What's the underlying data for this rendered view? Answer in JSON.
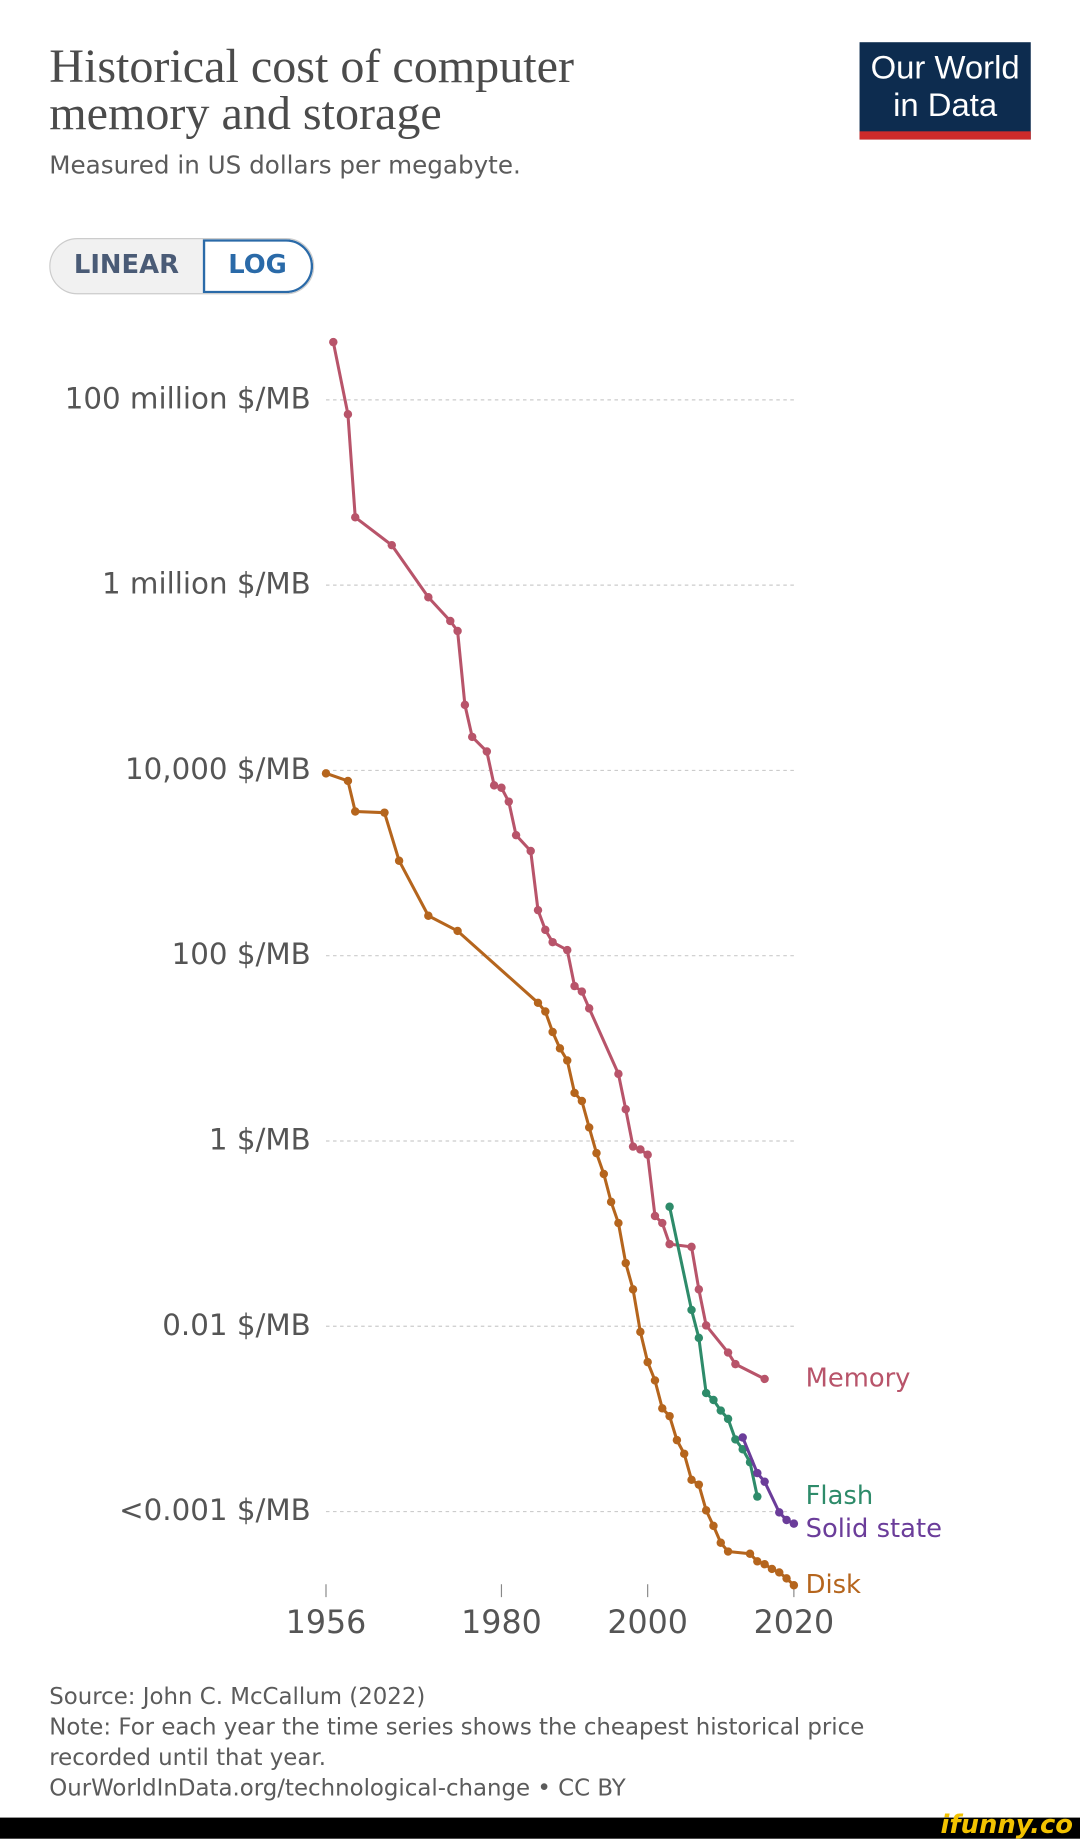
{
  "chart_data": {
    "type": "line",
    "title": "Historical cost of computer memory and storage",
    "subtitle": "Measured in US dollars per megabyte.",
    "logo": "Our World in Data",
    "scale_options": [
      "LINEAR",
      "LOG"
    ],
    "log_scale": true,
    "grid": true,
    "xlim": [
      1956,
      2020
    ],
    "xticks": [
      1956,
      1980,
      2000,
      2020
    ],
    "ylim": [
      1e-05,
      1000000000
    ],
    "yticks": [
      {
        "value": 100000000,
        "label": "100 million $/MB"
      },
      {
        "value": 1000000,
        "label": "1 million $/MB"
      },
      {
        "value": 10000,
        "label": "10,000 $/MB"
      },
      {
        "value": 100,
        "label": "100 $/MB"
      },
      {
        "value": 1,
        "label": "1 $/MB"
      },
      {
        "value": 0.01,
        "label": "0.01 $/MB"
      },
      {
        "value": 0.0001,
        "label": "<0.001 $/MB"
      }
    ],
    "series": [
      {
        "name": "Memory",
        "color": "#b8546a",
        "x": [
          1957,
          1959,
          1960,
          1965,
          1970,
          1973,
          1974,
          1975,
          1976,
          1978,
          1979,
          1980,
          1981,
          1982,
          1984,
          1985,
          1986,
          1987,
          1989,
          1990,
          1991,
          1992,
          1996,
          1997,
          1998,
          1999,
          2000,
          2001,
          2002,
          2003,
          2006,
          2007,
          2008,
          2011,
          2012,
          2016
        ],
        "values": [
          420000000,
          70000000,
          5400000,
          2700000,
          740000,
          410000,
          320000,
          51000,
          23000,
          16000,
          6900,
          6500,
          4600,
          2000,
          1350,
          310,
          190,
          140,
          115,
          47,
          41,
          27,
          5.3,
          2.2,
          0.87,
          0.81,
          0.71,
          0.155,
          0.13,
          0.077,
          0.072,
          0.025,
          0.0102,
          0.0052,
          0.0039,
          0.0027
        ]
      },
      {
        "name": "Flash",
        "color": "#2e8b6a",
        "x": [
          2003,
          2006,
          2007,
          2008,
          2009,
          2010,
          2011,
          2012,
          2013,
          2014,
          2015
        ],
        "values": [
          0.195,
          0.015,
          0.0075,
          0.0019,
          0.0016,
          0.00123,
          0.001,
          0.0006,
          0.00047,
          0.00034,
          0.000145
        ]
      },
      {
        "name": "Solid state",
        "color": "#6b3d9a",
        "x": [
          2013,
          2015,
          2016,
          2018,
          2019,
          2020
        ],
        "values": [
          0.00063,
          0.00026,
          0.00021,
          9.8e-05,
          8.1e-05,
          7.4e-05
        ]
      },
      {
        "name": "Disk",
        "color": "#b5651d",
        "x": [
          1956,
          1959,
          1960,
          1964,
          1966,
          1970,
          1974,
          1985,
          1986,
          1987,
          1988,
          1989,
          1990,
          1991,
          1992,
          1993,
          1994,
          1995,
          1996,
          1997,
          1998,
          1999,
          2000,
          2001,
          2002,
          2003,
          2004,
          2005,
          2006,
          2007,
          2008,
          2009,
          2010,
          2011,
          2014,
          2015,
          2016,
          2017,
          2018,
          2019,
          2020
        ],
        "values": [
          9300,
          7700,
          3600,
          3500,
          1060,
          270,
          185,
          31,
          25,
          15,
          10,
          7.4,
          3.3,
          2.7,
          1.4,
          0.74,
          0.44,
          0.22,
          0.13,
          0.048,
          0.025,
          0.0087,
          0.0041,
          0.0026,
          0.0013,
          0.00107,
          0.00059,
          0.00042,
          0.00022,
          0.000195,
          0.000103,
          7e-05,
          4.6e-05,
          3.7e-05,
          3.5e-05,
          2.9e-05,
          2.7e-05,
          2.4e-05,
          2.2e-05,
          1.9e-05,
          1.6e-05
        ]
      }
    ],
    "source": "Source: John C. McCallum (2022)",
    "note": "Note: For each year the time series shows the cheapest historical price recorded until that year.",
    "url": "OurWorldInData.org/technological-change • CC BY"
  },
  "watermark": "ifunny.co"
}
